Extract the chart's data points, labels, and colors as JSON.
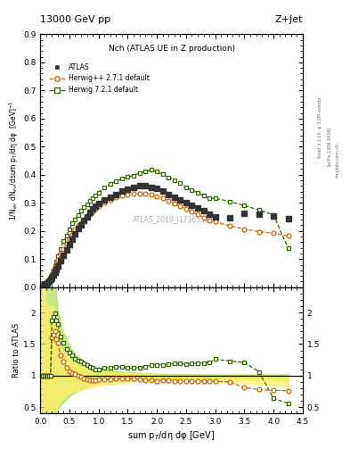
{
  "title_top": "13000 GeV pp",
  "title_right": "Z+Jet",
  "plot_title": "Nch (ATLAS UE in Z production)",
  "watermark": "ATLAS_2019_I1736531",
  "rivet_label": "Rivet 3.1.10, ≥ 3.2M events",
  "arxiv_label": "[arXiv:1306.3436]",
  "mcplots_label": "mcplots.cern.ch",
  "ylabel_main": "1/N$_{ev}$ dN$_{ev}$/dsum p$_T$/dη dφ  [GeV]$^{-1}$",
  "ylabel_ratio": "Ratio to ATLAS",
  "xlabel": "sum p$_T$/dη dφ [GeV]",
  "xlim": [
    0,
    4.5
  ],
  "ylim_main": [
    0,
    0.9
  ],
  "ylim_ratio": [
    0.4,
    2.4
  ],
  "atlas_x": [
    0.025,
    0.05,
    0.075,
    0.1,
    0.125,
    0.15,
    0.175,
    0.2,
    0.225,
    0.25,
    0.275,
    0.3,
    0.35,
    0.4,
    0.45,
    0.5,
    0.55,
    0.6,
    0.65,
    0.7,
    0.75,
    0.8,
    0.85,
    0.9,
    0.95,
    1.0,
    1.1,
    1.2,
    1.3,
    1.4,
    1.5,
    1.6,
    1.7,
    1.8,
    1.9,
    2.0,
    2.1,
    2.2,
    2.3,
    2.4,
    2.5,
    2.6,
    2.7,
    2.8,
    2.9,
    3.0,
    3.25,
    3.5,
    3.75,
    4.0,
    4.25
  ],
  "atlas_y": [
    0.003,
    0.006,
    0.009,
    0.012,
    0.016,
    0.021,
    0.027,
    0.034,
    0.042,
    0.053,
    0.063,
    0.074,
    0.093,
    0.113,
    0.132,
    0.152,
    0.172,
    0.191,
    0.208,
    0.222,
    0.237,
    0.251,
    0.265,
    0.279,
    0.287,
    0.297,
    0.311,
    0.321,
    0.331,
    0.341,
    0.35,
    0.356,
    0.361,
    0.361,
    0.356,
    0.351,
    0.341,
    0.331,
    0.321,
    0.311,
    0.301,
    0.291,
    0.281,
    0.271,
    0.261,
    0.251,
    0.248,
    0.263,
    0.258,
    0.253,
    0.243
  ],
  "herwig1_x": [
    0.025,
    0.05,
    0.075,
    0.1,
    0.125,
    0.15,
    0.175,
    0.2,
    0.225,
    0.25,
    0.275,
    0.3,
    0.35,
    0.4,
    0.45,
    0.5,
    0.55,
    0.6,
    0.65,
    0.7,
    0.75,
    0.8,
    0.85,
    0.9,
    0.95,
    1.0,
    1.1,
    1.2,
    1.3,
    1.4,
    1.5,
    1.6,
    1.7,
    1.8,
    1.9,
    2.0,
    2.1,
    2.2,
    2.3,
    2.4,
    2.5,
    2.6,
    2.7,
    2.8,
    2.9,
    3.0,
    3.25,
    3.5,
    3.75,
    4.0,
    4.25
  ],
  "herwig1_y": [
    0.003,
    0.006,
    0.009,
    0.012,
    0.016,
    0.021,
    0.027,
    0.045,
    0.058,
    0.073,
    0.083,
    0.097,
    0.117,
    0.137,
    0.156,
    0.171,
    0.186,
    0.204,
    0.219,
    0.229,
    0.239,
    0.249,
    0.259,
    0.268,
    0.278,
    0.287,
    0.301,
    0.311,
    0.32,
    0.325,
    0.33,
    0.334,
    0.334,
    0.333,
    0.328,
    0.323,
    0.318,
    0.308,
    0.298,
    0.288,
    0.278,
    0.268,
    0.258,
    0.248,
    0.238,
    0.233,
    0.218,
    0.207,
    0.197,
    0.192,
    0.182
  ],
  "herwig2_x": [
    0.025,
    0.05,
    0.075,
    0.1,
    0.125,
    0.15,
    0.175,
    0.2,
    0.225,
    0.25,
    0.275,
    0.3,
    0.35,
    0.4,
    0.45,
    0.5,
    0.55,
    0.6,
    0.65,
    0.7,
    0.75,
    0.8,
    0.85,
    0.9,
    0.95,
    1.0,
    1.1,
    1.2,
    1.3,
    1.4,
    1.5,
    1.6,
    1.7,
    1.8,
    1.9,
    2.0,
    2.1,
    2.2,
    2.3,
    2.4,
    2.5,
    2.6,
    2.7,
    2.8,
    2.9,
    3.0,
    3.25,
    3.5,
    3.75,
    4.0,
    4.25
  ],
  "herwig2_y": [
    0.003,
    0.005,
    0.008,
    0.011,
    0.015,
    0.019,
    0.025,
    0.045,
    0.058,
    0.075,
    0.09,
    0.11,
    0.135,
    0.163,
    0.183,
    0.207,
    0.227,
    0.242,
    0.257,
    0.272,
    0.286,
    0.296,
    0.306,
    0.316,
    0.326,
    0.336,
    0.356,
    0.367,
    0.377,
    0.387,
    0.392,
    0.397,
    0.407,
    0.412,
    0.417,
    0.411,
    0.401,
    0.391,
    0.381,
    0.371,
    0.356,
    0.346,
    0.336,
    0.326,
    0.316,
    0.316,
    0.305,
    0.29,
    0.275,
    0.257,
    0.138
  ],
  "atlas_color": "#333333",
  "herwig1_color": "#cc6600",
  "herwig2_color": "#336600",
  "ratio_herwig1_y": [
    1.0,
    1.0,
    1.0,
    1.0,
    1.0,
    1.0,
    1.0,
    1.6,
    1.65,
    1.7,
    1.58,
    1.52,
    1.32,
    1.22,
    1.12,
    1.07,
    1.04,
    1.02,
    1.0,
    0.98,
    0.96,
    0.94,
    0.93,
    0.93,
    0.93,
    0.94,
    0.94,
    0.94,
    0.95,
    0.95,
    0.95,
    0.95,
    0.94,
    0.93,
    0.93,
    0.92,
    0.93,
    0.93,
    0.92,
    0.92,
    0.92,
    0.92,
    0.92,
    0.92,
    0.91,
    0.91,
    0.9,
    0.81,
    0.78,
    0.77,
    0.76
  ],
  "ratio_herwig2_y": [
    1.0,
    1.0,
    1.0,
    1.0,
    1.0,
    1.0,
    1.0,
    1.88,
    1.93,
    1.98,
    1.88,
    1.82,
    1.62,
    1.52,
    1.42,
    1.37,
    1.32,
    1.27,
    1.24,
    1.22,
    1.2,
    1.17,
    1.14,
    1.12,
    1.1,
    1.09,
    1.12,
    1.13,
    1.14,
    1.14,
    1.12,
    1.12,
    1.13,
    1.14,
    1.17,
    1.17,
    1.17,
    1.18,
    1.19,
    1.19,
    1.18,
    1.19,
    1.2,
    1.2,
    1.21,
    1.26,
    1.23,
    1.21,
    1.06,
    0.64,
    0.56
  ],
  "h1_band_lo": [
    0.45,
    0.45,
    0.45,
    0.45,
    0.45,
    0.45,
    0.45,
    0.45,
    0.45,
    0.45,
    0.45,
    0.55,
    0.62,
    0.67,
    0.7,
    0.72,
    0.74,
    0.76,
    0.77,
    0.78,
    0.79,
    0.8,
    0.81,
    0.82,
    0.83,
    0.84,
    0.855,
    0.87,
    0.88,
    0.89,
    0.9,
    0.91,
    0.91,
    0.91,
    0.92,
    0.92,
    0.92,
    0.92,
    0.92,
    0.92,
    0.91,
    0.91,
    0.91,
    0.9,
    0.9,
    0.9,
    0.89,
    0.88,
    0.87,
    0.85,
    0.83
  ],
  "h1_band_hi": [
    2.4,
    2.8,
    2.5,
    2.1,
    2.1,
    2.1,
    2.1,
    2.1,
    2.1,
    1.9,
    1.7,
    1.55,
    1.42,
    1.37,
    1.32,
    1.27,
    1.24,
    1.22,
    1.2,
    1.18,
    1.16,
    1.14,
    1.12,
    1.11,
    1.1,
    1.09,
    1.07,
    1.06,
    1.055,
    1.05,
    1.045,
    1.04,
    1.035,
    1.03,
    1.025,
    1.02,
    1.018,
    1.015,
    1.012,
    1.01,
    1.008,
    1.006,
    1.005,
    1.003,
    1.002,
    1.001,
    1.0,
    1.0,
    1.0,
    1.0,
    1.0
  ],
  "h2_band_lo": [
    0.4,
    0.4,
    0.4,
    0.4,
    0.4,
    0.4,
    0.4,
    0.4,
    0.4,
    0.4,
    0.4,
    0.48,
    0.53,
    0.58,
    0.63,
    0.68,
    0.71,
    0.74,
    0.76,
    0.78,
    0.8,
    0.82,
    0.84,
    0.86,
    0.875,
    0.89,
    0.905,
    0.915,
    0.922,
    0.928,
    0.932,
    0.937,
    0.937,
    0.942,
    0.947,
    0.947,
    0.952,
    0.952,
    0.957,
    0.957,
    0.957,
    0.957,
    0.957,
    0.957,
    0.957,
    0.957,
    0.952,
    0.947,
    0.942,
    0.937,
    0.897
  ],
  "h2_band_hi": [
    2.9,
    2.9,
    2.9,
    2.9,
    2.9,
    2.9,
    2.9,
    2.9,
    2.9,
    2.55,
    2.25,
    2.05,
    1.82,
    1.67,
    1.57,
    1.47,
    1.4,
    1.34,
    1.3,
    1.26,
    1.23,
    1.2,
    1.17,
    1.15,
    1.13,
    1.115,
    1.1,
    1.085,
    1.075,
    1.065,
    1.058,
    1.052,
    1.045,
    1.04,
    1.035,
    1.032,
    1.029,
    1.027,
    1.025,
    1.024,
    1.023,
    1.022,
    1.021,
    1.021,
    1.02,
    1.02,
    1.02,
    1.02,
    1.02,
    1.02,
    1.02
  ]
}
